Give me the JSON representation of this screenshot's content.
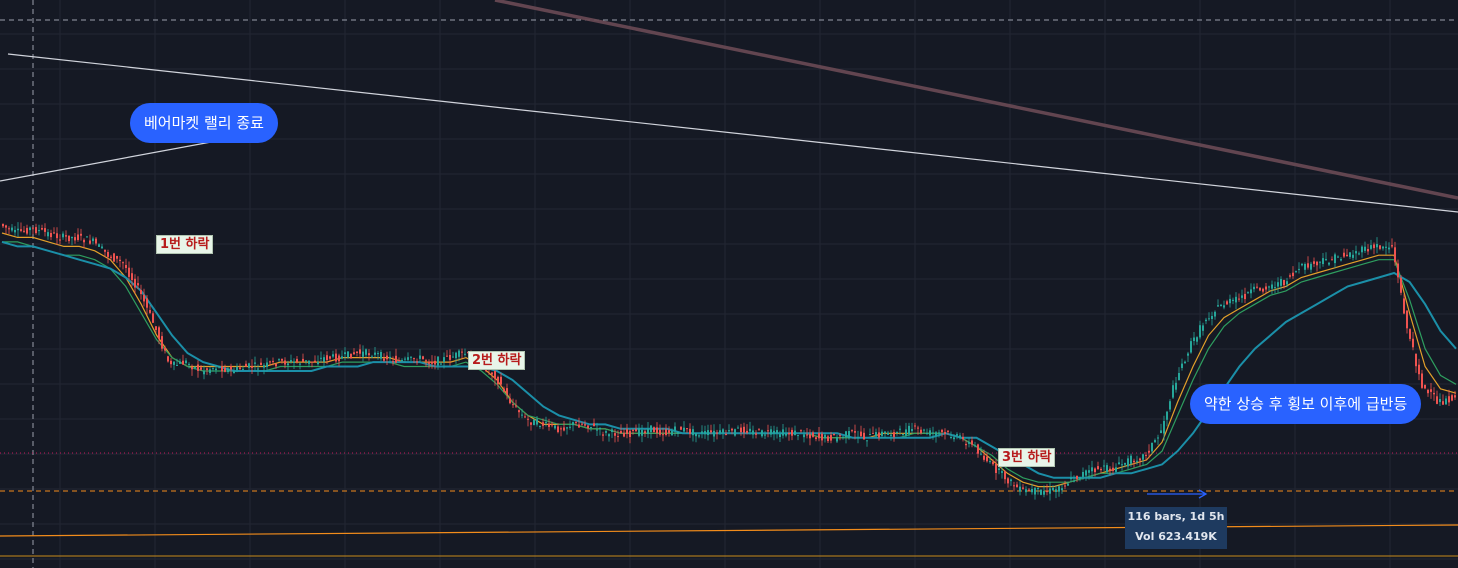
{
  "annotations": {
    "callout_bear_rally": "베어마켓 랠리 종료",
    "callout_rebound": "약한 상승 후 횡보 이후에 급반등",
    "drop_1": "1번 하락",
    "drop_2": "2번 하락",
    "drop_3": "3번 하락"
  },
  "measure": {
    "bars": "116 bars, 1d 5h",
    "volume": "Vol 623.419K"
  },
  "colors": {
    "background": "#151924",
    "grid": "#222633",
    "up": "#26a69a",
    "down": "#ef5350",
    "ma_slow": "#1b8fa8",
    "ma_mid": "#2e9e5f",
    "ma_fast": "#e3a02a",
    "trendline": "#d1d4dc",
    "resistance": "#6b4a55",
    "support_orange": "#f28c1b",
    "callout": "#2962ff"
  },
  "chart_data": {
    "type": "line",
    "title": "",
    "xlabel": "",
    "ylabel": "",
    "grid": true,
    "series": [
      {
        "values": [
          62,
          60,
          61,
          60,
          59,
          59,
          58,
          55,
          53,
          47,
          39,
          30,
          31,
          29,
          30,
          29,
          30,
          30,
          31,
          31,
          31,
          32,
          32,
          33,
          33,
          32,
          31,
          32,
          31,
          32,
          33,
          31,
          28,
          22,
          18,
          17,
          16,
          17,
          17,
          15,
          15,
          15,
          16,
          15,
          16,
          15,
          15,
          15,
          16,
          15,
          15,
          15,
          15,
          14,
          14,
          15,
          14,
          15,
          15,
          16,
          15,
          15,
          14,
          12,
          8,
          5,
          2,
          2,
          2,
          4,
          6,
          7,
          7,
          9,
          10,
          15,
          27,
          35,
          41,
          44,
          45,
          47,
          48,
          49,
          52,
          53,
          54,
          55,
          56,
          57,
          57,
          38,
          25,
          22,
          23
        ]
      },
      {
        "values": [
          60,
          59,
          59,
          58,
          57,
          57,
          56,
          54,
          50,
          44,
          37,
          32,
          30,
          30,
          30,
          30,
          30,
          30,
          31,
          31,
          31,
          31,
          32,
          32,
          32,
          32,
          31,
          31,
          31,
          31,
          32,
          30,
          27,
          22,
          19,
          17,
          17,
          17,
          16,
          16,
          15,
          15,
          15,
          15,
          15,
          15,
          15,
          15,
          15,
          15,
          15,
          15,
          15,
          14,
          14,
          14,
          14,
          15,
          15,
          15,
          15,
          15,
          14,
          12,
          9,
          6,
          4,
          3,
          3,
          4,
          5,
          6,
          7,
          8,
          9,
          13,
          22,
          30,
          37,
          41,
          43,
          45,
          47,
          48,
          50,
          51,
          52,
          53,
          54,
          55,
          55,
          42,
          30,
          25,
          24
        ]
      },
      {
        "values": [
          58,
          58,
          57,
          56,
          55,
          55,
          54,
          52,
          48,
          42,
          36,
          32,
          30,
          29,
          29,
          29,
          29,
          29,
          30,
          30,
          30,
          30,
          31,
          31,
          31,
          31,
          30,
          30,
          30,
          30,
          31,
          29,
          26,
          22,
          19,
          18,
          17,
          17,
          16,
          16,
          15,
          15,
          15,
          15,
          15,
          15,
          15,
          15,
          15,
          15,
          15,
          15,
          15,
          14,
          14,
          14,
          14,
          14,
          14,
          15,
          15,
          15,
          14,
          12,
          10,
          7,
          5,
          4,
          4,
          4,
          5,
          6,
          6,
          7,
          8,
          11,
          19,
          27,
          34,
          39,
          42,
          44,
          46,
          47,
          49,
          50,
          51,
          52,
          53,
          54,
          54,
          45,
          34,
          28,
          26
        ]
      },
      {
        "values": [
          58,
          57,
          57,
          56,
          55,
          54,
          53,
          52,
          50,
          47,
          42,
          37,
          33,
          31,
          30,
          29,
          29,
          29,
          29,
          29,
          29,
          30,
          30,
          30,
          31,
          31,
          31,
          31,
          30,
          30,
          30,
          30,
          29,
          27,
          24,
          21,
          19,
          18,
          17,
          17,
          16,
          16,
          16,
          16,
          15,
          15,
          15,
          15,
          15,
          15,
          15,
          15,
          15,
          15,
          15,
          14,
          14,
          14,
          14,
          14,
          14,
          15,
          14,
          14,
          12,
          10,
          8,
          6,
          5,
          5,
          5,
          5,
          6,
          6,
          7,
          8,
          11,
          15,
          20,
          25,
          30,
          34,
          37,
          40,
          42,
          44,
          46,
          48,
          49,
          50,
          51,
          49,
          44,
          38,
          34
        ]
      }
    ],
    "ylim": [
      0,
      100
    ]
  }
}
